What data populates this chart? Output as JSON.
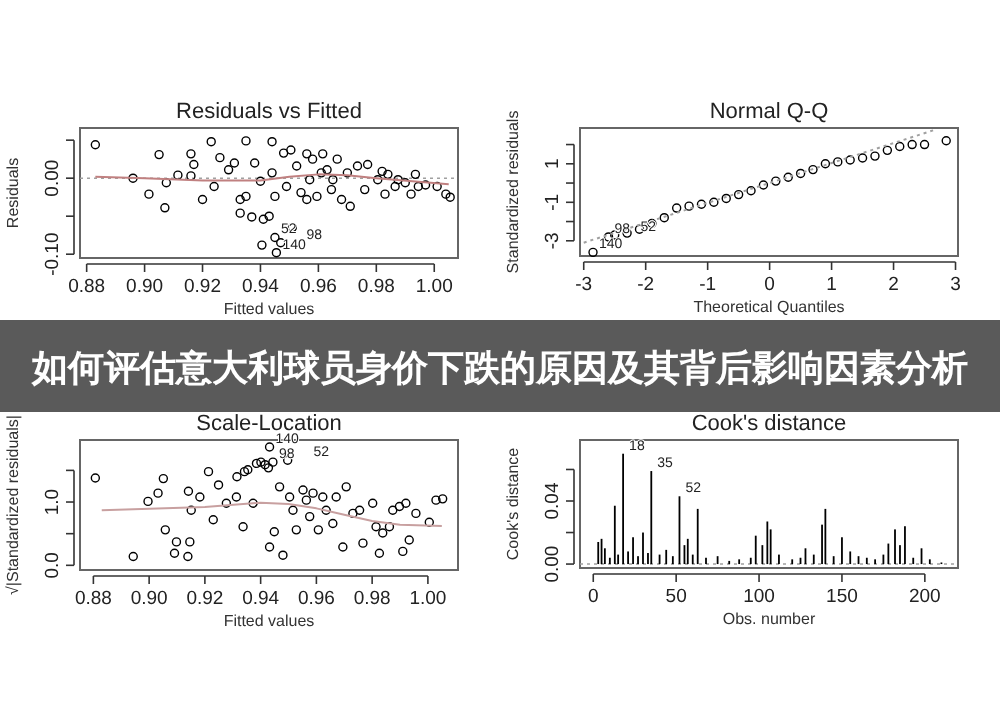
{
  "chart_data": [
    {
      "type": "scatter",
      "title": "Residuals vs Fitted",
      "xlabel": "Fitted values",
      "ylabel": "Residuals",
      "xlim": [
        0.8777,
        1.0082
      ],
      "ylim": [
        -0.105,
        0.066
      ],
      "xticks": [
        {
          "value": 0.88,
          "label": "0.88"
        },
        {
          "value": 0.9,
          "label": "0.90"
        },
        {
          "value": 0.92,
          "label": "0.92"
        },
        {
          "value": 0.94,
          "label": "0.94"
        },
        {
          "value": 0.96,
          "label": "0.96"
        },
        {
          "value": 0.98,
          "label": "0.98"
        },
        {
          "value": 1,
          "label": "1.00"
        }
      ],
      "yticks": [
        {
          "value": -0.1,
          "label": "-0.10"
        },
        {
          "value": -0.05,
          "label": null
        },
        {
          "value": 0,
          "label": "0.00"
        },
        {
          "value": 0.05,
          "label": null
        }
      ],
      "ref_lines": [
        {
          "axis": "y",
          "value": 0,
          "color": "#a0a0a0",
          "line_style": "dotted"
        }
      ],
      "annotations": [
        {
          "text": "52",
          "x": 0.945,
          "y": -0.078
        },
        {
          "text": "98",
          "x": 0.947,
          "y": -0.085
        },
        {
          "text": "140",
          "x": 0.9455,
          "y": -0.098
        }
      ],
      "series": [
        {
          "color": "#000000",
          "marker": "circle",
          "x": [
            0.883,
            0.905,
            0.9015,
            0.907,
            0.9075,
            0.896,
            0.9115,
            0.916,
            0.917,
            0.916,
            0.92,
            0.923,
            0.924,
            0.926,
            0.929,
            0.931,
            0.933,
            0.933,
            0.935,
            0.935,
            0.937,
            0.938,
            0.94,
            0.941,
            0.9405,
            0.943,
            0.944,
            0.944,
            0.945,
            0.947,
            0.9455,
            0.945,
            0.948,
            0.949,
            0.9505,
            0.951,
            0.9525,
            0.954,
            0.956,
            0.957,
            0.958,
            0.9595,
            0.9615,
            0.963,
            0.9645,
            0.9665,
            0.968,
            0.97,
            0.971,
            0.9735,
            0.976,
            0.977,
            0.9805,
            0.982,
            0.983,
            0.984,
            0.9865,
            0.9875,
            0.99,
            0.992,
            0.9935,
            0.9945,
            0.997,
            1.001,
            1.004,
            1.0055,
            0.956,
            0.961,
            0.965
          ],
          "values": [
            0.044,
            0.031,
            -0.021,
            -0.039,
            -0.006,
            0.0,
            0.004,
            0.032,
            0.018,
            0.003,
            -0.028,
            0.048,
            -0.011,
            0.027,
            0.011,
            0.02,
            -0.028,
            -0.046,
            0.049,
            -0.024,
            -0.051,
            0.02,
            -0.004,
            -0.054,
            -0.088,
            -0.05,
            0.048,
            0.007,
            -0.078,
            -0.085,
            -0.098,
            -0.024,
            0.033,
            -0.011,
            0.037,
            -0.065,
            0.016,
            -0.019,
            0.032,
            -0.002,
            0.025,
            -0.024,
            0.032,
            0.011,
            -0.015,
            0.025,
            -0.028,
            0.007,
            -0.037,
            0.016,
            -0.015,
            0.018,
            -0.002,
            0.009,
            -0.021,
            0.005,
            -0.011,
            -0.002,
            -0.006,
            -0.021,
            0.005,
            -0.011,
            -0.009,
            -0.011,
            -0.021,
            -0.025,
            -0.028,
            0.007,
            -0.002
          ]
        },
        {
          "type": "line",
          "color": "#c08080",
          "line_style": "solid",
          "x": [
            0.883,
            0.9,
            0.92,
            0.94,
            0.95,
            0.96,
            0.97,
            0.98,
            1.005
          ],
          "values": [
            0.002,
            0.0,
            -0.003,
            -0.003,
            0.002,
            0.005,
            0.004,
            0.0,
            -0.008
          ]
        }
      ]
    },
    {
      "type": "scatter",
      "title": "Normal Q-Q",
      "xlabel": "Theoretical Quantiles",
      "ylabel": "Standardized residuals",
      "xlim": [
        -3.06,
        3.04
      ],
      "ylim": [
        -3.79,
        2.86
      ],
      "xticks": [
        -3,
        -2,
        -1,
        0,
        1,
        2,
        3
      ],
      "yticks": [
        {
          "value": -3,
          "label": "-3"
        },
        {
          "value": -2,
          "label": null
        },
        {
          "value": -1,
          "label": "-1"
        },
        {
          "value": 0,
          "label": null
        },
        {
          "value": 1,
          "label": "1"
        },
        {
          "value": 2,
          "label": null
        }
      ],
      "annotations": [
        {
          "text": "140",
          "x": -2.85,
          "y": -3.6
        },
        {
          "text": "98",
          "x": -2.6,
          "y": -2.8
        },
        {
          "text": "52",
          "x": -2.5,
          "y": -2.7
        }
      ],
      "series": [
        {
          "color": "#000000",
          "marker": "circle",
          "x": [
            -2.85,
            -2.6,
            -2.5,
            -2.3,
            -2.1,
            -1.9,
            -1.7,
            -1.5,
            -1.3,
            -1.1,
            -0.9,
            -0.7,
            -0.5,
            -0.3,
            -0.1,
            0.1,
            0.3,
            0.5,
            0.7,
            0.9,
            1.1,
            1.3,
            1.5,
            1.7,
            1.9,
            2.1,
            2.3,
            2.5,
            2.85
          ],
          "values": [
            -3.6,
            -2.8,
            -2.7,
            -2.6,
            -2.4,
            -2.1,
            -1.8,
            -1.3,
            -1.2,
            -1.1,
            -1.0,
            -0.8,
            -0.6,
            -0.4,
            -0.1,
            0.1,
            0.3,
            0.5,
            0.7,
            1.0,
            1.1,
            1.2,
            1.3,
            1.4,
            1.7,
            1.9,
            2.0,
            2.0,
            2.2
          ]
        },
        {
          "type": "line",
          "color": "#a0a0a0",
          "line_style": "dotted",
          "x": [
            -3,
            2.7
          ],
          "values": [
            -3.1,
            2.8
          ]
        }
      ]
    },
    {
      "type": "other",
      "title": "如何评估意大利球员身价下跌的原因及其背后影响因素分析"
    },
    {
      "type": "scatter",
      "title": "Scale-Location",
      "xlabel": "Fitted values",
      "ylabel": "√|Standardized residuals|",
      "xlim": [
        0.8752,
        1.0108
      ],
      "ylim": [
        -0.074,
        1.98
      ],
      "xticks": [
        {
          "value": 0.88,
          "label": "0.88"
        },
        {
          "value": 0.9,
          "label": "0.90"
        },
        {
          "value": 0.92,
          "label": "0.92"
        },
        {
          "value": 0.94,
          "label": "0.94"
        },
        {
          "value": 0.96,
          "label": "0.96"
        },
        {
          "value": 0.98,
          "label": "0.98"
        },
        {
          "value": 1,
          "label": "1.00"
        }
      ],
      "yticks": [
        {
          "value": 0,
          "label": "0.0"
        },
        {
          "value": 0.5,
          "label": null
        },
        {
          "value": 1,
          "label": "1.0"
        },
        {
          "value": 1.5,
          "label": null
        }
      ],
      "annotations": [
        {
          "text": "140",
          "x": 0.9432,
          "y": 1.87
        },
        {
          "text": "98",
          "x": 0.9444,
          "y": 1.63
        },
        {
          "text": "52",
          "x": 0.9497,
          "y": 1.66
        }
      ],
      "series": [
        {
          "color": "#000000",
          "marker": "circle",
          "x": [
            0.8807,
            0.8943,
            0.8996,
            0.9032,
            0.9051,
            0.9058,
            0.9098,
            0.9091,
            0.9141,
            0.9151,
            0.9146,
            0.9139,
            0.9182,
            0.9213,
            0.923,
            0.9249,
            0.9277,
            0.9313,
            0.9315,
            0.9337,
            0.9342,
            0.9354,
            0.9373,
            0.9385,
            0.9401,
            0.9416,
            0.9428,
            0.9432,
            0.9432,
            0.9444,
            0.9449,
            0.9468,
            0.948,
            0.9497,
            0.9504,
            0.9516,
            0.9528,
            0.9552,
            0.9564,
            0.9576,
            0.9588,
            0.9607,
            0.9623,
            0.9635,
            0.9659,
            0.9671,
            0.9695,
            0.9707,
            0.9731,
            0.9755,
            0.9767,
            0.9802,
            0.9814,
            0.9826,
            0.9838,
            0.9862,
            0.9874,
            0.9898,
            0.991,
            0.9921,
            0.9933,
            0.9957,
            1.0005,
            1.0029,
            1.0053
          ],
          "values": [
            1.38,
            0.14,
            1.01,
            1.14,
            1.37,
            0.56,
            0.37,
            0.19,
            1.17,
            0.87,
            0.37,
            0.14,
            1.08,
            1.48,
            0.72,
            1.27,
            0.98,
            1.08,
            1.4,
            0.61,
            1.48,
            1.51,
            0.98,
            1.61,
            1.63,
            1.59,
            1.54,
            1.87,
            0.29,
            1.63,
            0.53,
            1.24,
            0.16,
            1.66,
            1.08,
            0.87,
            0.56,
            1.19,
            1.03,
            0.77,
            1.14,
            0.56,
            1.08,
            0.87,
            0.66,
            1.08,
            0.29,
            1.24,
            0.82,
            0.87,
            0.35,
            0.98,
            0.61,
            0.19,
            0.51,
            0.61,
            0.87,
            0.93,
            0.22,
            0.98,
            0.4,
            0.82,
            0.68,
            1.03,
            1.05
          ]
        },
        {
          "type": "line",
          "color": "#c8a0a0",
          "line_style": "solid",
          "x": [
            0.883,
            0.92,
            0.94,
            0.95,
            0.96,
            0.97,
            0.98,
            0.99,
            1.005
          ],
          "values": [
            0.87,
            0.92,
            0.99,
            0.97,
            0.9,
            0.8,
            0.7,
            0.64,
            0.62
          ]
        }
      ]
    },
    {
      "type": "bar",
      "title": "Cook's distance",
      "xlabel": "Obs. number",
      "ylabel": "Cook's distance",
      "xlim": [
        -8,
        220
      ],
      "ylim": [
        -0.0025,
        0.0787
      ],
      "xticks": [
        0,
        50,
        100,
        150,
        200
      ],
      "yticks": [
        {
          "value": 0,
          "label": "0.00"
        },
        {
          "value": 0.02,
          "label": null
        },
        {
          "value": 0.04,
          "label": "0.04"
        },
        {
          "value": 0.06,
          "label": null
        }
      ],
      "ref_lines": [
        {
          "axis": "y",
          "value": 0,
          "color": "#a0a0a0",
          "line_style": "dotted"
        }
      ],
      "annotations": [
        {
          "text": "18",
          "x": 18,
          "y": 0.07
        },
        {
          "text": "35",
          "x": 35,
          "y": 0.059
        },
        {
          "text": "52",
          "x": 52,
          "y": 0.043
        }
      ],
      "series": [
        {
          "color": "#000000",
          "x": [
            3,
            5,
            7,
            10,
            13,
            15,
            18,
            21,
            24,
            27,
            30,
            33,
            35,
            40,
            44,
            48,
            52,
            55,
            57,
            60,
            63,
            68,
            75,
            82,
            88,
            95,
            98,
            102,
            105,
            107,
            112,
            120,
            125,
            128,
            133,
            138,
            140,
            145,
            150,
            155,
            160,
            165,
            170,
            175,
            178,
            182,
            185,
            188,
            193,
            198,
            203,
            210
          ],
          "values": [
            0.014,
            0.016,
            0.01,
            0.004,
            0.037,
            0.006,
            0.07,
            0.008,
            0.017,
            0.005,
            0.02,
            0.007,
            0.059,
            0.006,
            0.009,
            0.005,
            0.043,
            0.012,
            0.016,
            0.006,
            0.035,
            0.004,
            0.005,
            0.002,
            0.003,
            0.004,
            0.018,
            0.012,
            0.027,
            0.022,
            0.006,
            0.003,
            0.004,
            0.01,
            0.006,
            0.025,
            0.035,
            0.005,
            0.017,
            0.008,
            0.005,
            0.004,
            0.003,
            0.006,
            0.013,
            0.022,
            0.012,
            0.024,
            0.004,
            0.01,
            0.003,
            0.001
          ]
        }
      ]
    }
  ]
}
